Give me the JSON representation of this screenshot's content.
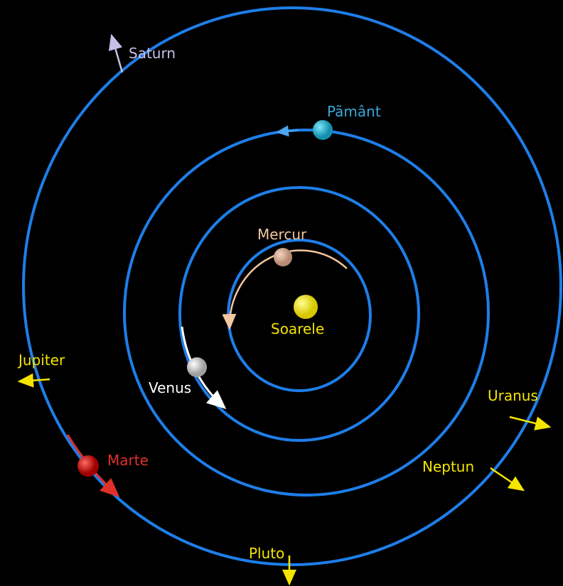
{
  "labels": [
    "Saturn",
    "Pãmânt",
    "Mercur",
    "Soarele",
    "Jupiter",
    "Venus",
    "Uranus",
    "Marte",
    "Neptun",
    "Pluto"
  ]
}
